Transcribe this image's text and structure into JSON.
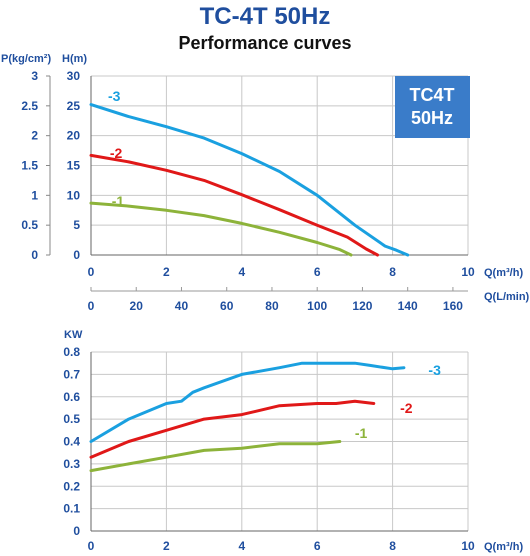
{
  "header": {
    "model": "TC-4T",
    "freq": "50Hz",
    "subtitle": "Performance curves"
  },
  "badge": {
    "line1": "TC4T",
    "line2": "50Hz"
  },
  "colors": {
    "curve3": "#1aa0e0",
    "curve2": "#e01818",
    "curve1": "#8db33a",
    "axis": "#1f4e9e",
    "badge": "#3a7cc9"
  },
  "chart_data": [
    {
      "type": "line",
      "name": "head-chart",
      "y_label_left": "P(kg/cm²)",
      "y_label_right": "H(m)",
      "x_label": "Q(m³/h)",
      "x2_label": "Q(L/min)",
      "xlim": [
        0,
        10
      ],
      "ylim": [
        0,
        30
      ],
      "x_ticks": [
        "0",
        "2",
        "4",
        "6",
        "8",
        "10"
      ],
      "x2_ticks": [
        "0",
        "20",
        "40",
        "60",
        "80",
        "100",
        "120",
        "140",
        "160"
      ],
      "y_ticks": [
        "0",
        "5",
        "10",
        "15",
        "20",
        "25",
        "30"
      ],
      "p_ticks": [
        "0",
        "0.5",
        "1",
        "1.5",
        "2",
        "2.5",
        "3"
      ],
      "series": [
        {
          "name": "-3",
          "color": "#1aa0e0",
          "x": [
            0,
            1,
            2,
            3,
            4,
            5,
            6,
            7,
            7.8,
            8.1,
            8.4
          ],
          "y": [
            25.2,
            23.2,
            21.5,
            19.6,
            17,
            14,
            10,
            5,
            1.5,
            0.8,
            0
          ]
        },
        {
          "name": "-2",
          "color": "#e01818",
          "x": [
            0,
            1,
            2,
            3,
            4,
            5,
            6,
            6.8,
            7.3,
            7.6
          ],
          "y": [
            16.7,
            15.6,
            14.2,
            12.5,
            10.1,
            7.6,
            5,
            3,
            1,
            0
          ]
        },
        {
          "name": "-1",
          "color": "#8db33a",
          "x": [
            0,
            1,
            2,
            3,
            4,
            5,
            6,
            6.6,
            6.9
          ],
          "y": [
            8.7,
            8.2,
            7.5,
            6.6,
            5.3,
            3.8,
            2.1,
            0.9,
            0
          ]
        }
      ]
    },
    {
      "type": "line",
      "name": "power-chart",
      "y_label": "KW",
      "x_label": "Q(m³/h)",
      "xlim": [
        0,
        10
      ],
      "ylim": [
        0,
        0.8
      ],
      "x_ticks": [
        "0",
        "2",
        "4",
        "6",
        "8",
        "10"
      ],
      "y_ticks": [
        "0",
        "0.1",
        "0.2",
        "0.3",
        "0.4",
        "0.5",
        "0.6",
        "0.7",
        "0.8"
      ],
      "series": [
        {
          "name": "-3",
          "color": "#1aa0e0",
          "x": [
            0,
            1,
            2,
            2.4,
            2.7,
            3,
            4,
            5,
            5.6,
            6,
            7,
            7.4,
            8,
            8.3
          ],
          "y": [
            0.4,
            0.5,
            0.57,
            0.58,
            0.62,
            0.64,
            0.7,
            0.73,
            0.75,
            0.75,
            0.75,
            0.74,
            0.725,
            0.73
          ]
        },
        {
          "name": "-2",
          "color": "#e01818",
          "x": [
            0,
            1,
            2,
            3,
            4,
            4.5,
            5,
            6,
            6.5,
            7,
            7.5
          ],
          "y": [
            0.33,
            0.4,
            0.45,
            0.5,
            0.52,
            0.54,
            0.56,
            0.57,
            0.57,
            0.58,
            0.57
          ]
        },
        {
          "name": "-1",
          "color": "#8db33a",
          "x": [
            0,
            1,
            2,
            3,
            4,
            5,
            6,
            6.6
          ],
          "y": [
            0.27,
            0.3,
            0.33,
            0.36,
            0.37,
            0.39,
            0.39,
            0.4
          ]
        }
      ]
    }
  ]
}
